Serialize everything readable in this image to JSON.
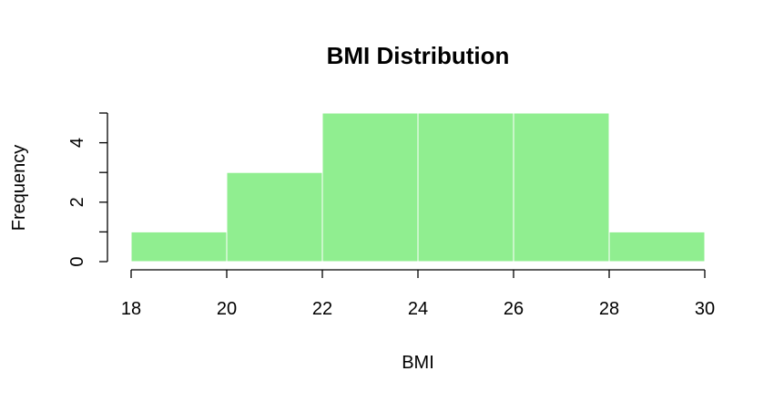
{
  "chart_data": {
    "type": "bar",
    "title": "BMI Distribution",
    "xlabel": "BMI",
    "ylabel": "Frequency",
    "bins": [
      {
        "start": 18,
        "end": 20,
        "count": 1
      },
      {
        "start": 20,
        "end": 22,
        "count": 3
      },
      {
        "start": 22,
        "end": 24,
        "count": 5
      },
      {
        "start": 24,
        "end": 26,
        "count": 5
      },
      {
        "start": 26,
        "end": 28,
        "count": 5
      },
      {
        "start": 28,
        "end": 30,
        "count": 1
      }
    ],
    "xlim": [
      18,
      30
    ],
    "ylim": [
      0,
      5
    ],
    "x_ticks": [
      "18",
      "20",
      "22",
      "24",
      "26",
      "28",
      "30"
    ],
    "y_ticks": [
      "0",
      "2",
      "4"
    ],
    "grid": false,
    "colors": {
      "bar_fill": "#90EE90",
      "bar_border": "#ffffff",
      "axis": "#000000"
    }
  }
}
